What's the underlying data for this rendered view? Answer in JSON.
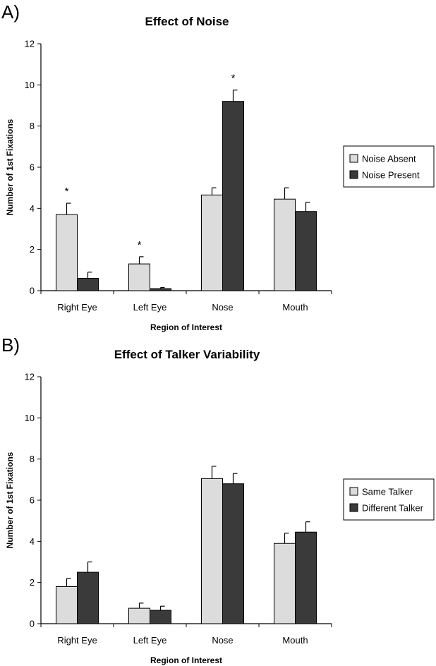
{
  "chart_data": [
    {
      "panel_label": "A)",
      "type": "bar",
      "title": "Effect of Noise",
      "xlabel": "Region of Interest",
      "ylabel": "Number of 1st Fixations",
      "ylim": [
        0,
        12
      ],
      "yticks": [
        0,
        2,
        4,
        6,
        8,
        10,
        12
      ],
      "categories": [
        "Right Eye",
        "Left Eye",
        "Nose",
        "Mouth"
      ],
      "series": [
        {
          "name": "Noise Absent",
          "color": "#dcdcdc",
          "values": [
            3.7,
            1.3,
            4.65,
            4.45
          ],
          "errors": [
            0.55,
            0.35,
            0.35,
            0.55
          ]
        },
        {
          "name": "Noise Present",
          "color": "#3a3a3a",
          "values": [
            0.6,
            0.1,
            9.2,
            3.85
          ],
          "errors": [
            0.3,
            0.05,
            0.55,
            0.45
          ]
        }
      ],
      "significance": [
        {
          "category": 0,
          "series": 0,
          "label": "*"
        },
        {
          "category": 1,
          "series": 0,
          "label": "*"
        },
        {
          "category": 2,
          "series": 1,
          "label": "*"
        }
      ],
      "grid": false,
      "legend": "right"
    },
    {
      "panel_label": "B)",
      "type": "bar",
      "title": "Effect of Talker Variability",
      "xlabel": "Region of Interest",
      "ylabel": "Number of 1st Fixations",
      "ylim": [
        0,
        12
      ],
      "yticks": [
        0,
        2,
        4,
        6,
        8,
        10,
        12
      ],
      "categories": [
        "Right Eye",
        "Left Eye",
        "Nose",
        "Mouth"
      ],
      "series": [
        {
          "name": "Same Talker",
          "color": "#dcdcdc",
          "values": [
            1.8,
            0.75,
            7.05,
            3.9
          ],
          "errors": [
            0.4,
            0.25,
            0.6,
            0.5
          ]
        },
        {
          "name": "Different Talker",
          "color": "#3a3a3a",
          "values": [
            2.5,
            0.65,
            6.8,
            4.45
          ],
          "errors": [
            0.5,
            0.2,
            0.5,
            0.5
          ]
        }
      ],
      "significance": [],
      "grid": false,
      "legend": "right"
    }
  ]
}
